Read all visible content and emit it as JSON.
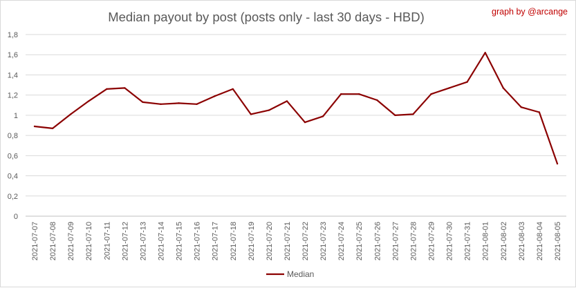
{
  "chart_data": {
    "type": "line",
    "title": "Median payout by post (posts only - last 30 days - HBD)",
    "credit": "graph by @arcange",
    "xlabel": "",
    "ylabel": "",
    "ylim": [
      0,
      1.8
    ],
    "yticks": [
      "0",
      "0,2",
      "0,4",
      "0,6",
      "0,8",
      "1",
      "1,2",
      "1,4",
      "1,6",
      "1,8"
    ],
    "grid": true,
    "legend_position": "bottom",
    "categories": [
      "2021-07-07",
      "2021-07-08",
      "2021-07-09",
      "2021-07-10",
      "2021-07-11",
      "2021-07-12",
      "2021-07-13",
      "2021-07-14",
      "2021-07-15",
      "2021-07-16",
      "2021-07-17",
      "2021-07-18",
      "2021-07-19",
      "2021-07-20",
      "2021-07-21",
      "2021-07-22",
      "2021-07-23",
      "2021-07-24",
      "2021-07-25",
      "2021-07-26",
      "2021-07-27",
      "2021-07-28",
      "2021-07-29",
      "2021-07-30",
      "2021-07-31",
      "2021-08-01",
      "2021-08-02",
      "2021-08-03",
      "2021-08-04",
      "2021-08-05"
    ],
    "series": [
      {
        "name": "Median",
        "color": "#8b0000",
        "values": [
          0.89,
          0.87,
          1.01,
          1.14,
          1.26,
          1.27,
          1.13,
          1.11,
          1.12,
          1.11,
          1.19,
          1.26,
          1.01,
          1.05,
          1.14,
          0.93,
          0.99,
          1.21,
          1.21,
          1.15,
          1.0,
          1.01,
          1.21,
          1.27,
          1.33,
          1.62,
          1.27,
          1.08,
          1.03,
          0.52
        ]
      }
    ]
  }
}
